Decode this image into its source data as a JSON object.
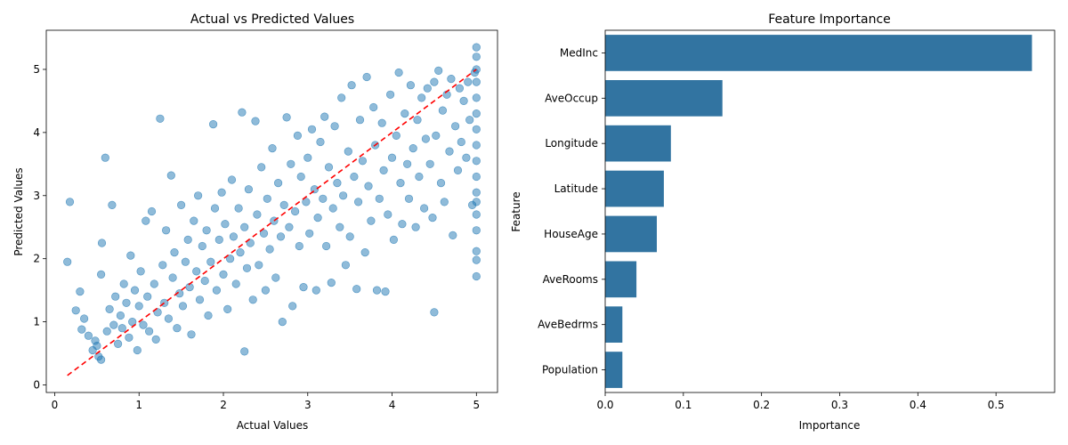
{
  "chart_data": [
    {
      "type": "scatter",
      "title": "Actual vs Predicted Values",
      "xlabel": "Actual Values",
      "ylabel": "Predicted Values",
      "xlim": [
        -0.1,
        5.25
      ],
      "ylim": [
        -0.12,
        5.62
      ],
      "xticks": [
        0,
        1,
        2,
        3,
        4,
        5
      ],
      "yticks": [
        0,
        1,
        2,
        3,
        4,
        5
      ],
      "grid": false,
      "point_color": "#1f77b4",
      "point_alpha": 0.5,
      "reference_line": {
        "x": [
          0.15,
          5.0
        ],
        "y": [
          0.15,
          5.0
        ],
        "color": "#ff0000",
        "style": "dashed"
      },
      "points": [
        [
          0.15,
          1.95
        ],
        [
          0.18,
          2.9
        ],
        [
          0.25,
          1.18
        ],
        [
          0.3,
          1.48
        ],
        [
          0.32,
          0.88
        ],
        [
          0.35,
          1.05
        ],
        [
          0.4,
          0.78
        ],
        [
          0.45,
          0.55
        ],
        [
          0.48,
          0.7
        ],
        [
          0.5,
          0.62
        ],
        [
          0.52,
          0.45
        ],
        [
          0.55,
          0.4
        ],
        [
          0.55,
          1.75
        ],
        [
          0.56,
          2.25
        ],
        [
          0.6,
          3.6
        ],
        [
          0.62,
          0.85
        ],
        [
          0.65,
          1.2
        ],
        [
          0.68,
          2.85
        ],
        [
          0.7,
          0.95
        ],
        [
          0.72,
          1.4
        ],
        [
          0.75,
          0.65
        ],
        [
          0.78,
          1.1
        ],
        [
          0.8,
          0.9
        ],
        [
          0.82,
          1.6
        ],
        [
          0.85,
          1.3
        ],
        [
          0.88,
          0.75
        ],
        [
          0.9,
          2.05
        ],
        [
          0.92,
          1.0
        ],
        [
          0.95,
          1.5
        ],
        [
          0.98,
          0.55
        ],
        [
          1.0,
          1.25
        ],
        [
          1.02,
          1.8
        ],
        [
          1.05,
          0.95
        ],
        [
          1.08,
          2.6
        ],
        [
          1.1,
          1.4
        ],
        [
          1.12,
          0.85
        ],
        [
          1.15,
          2.75
        ],
        [
          1.18,
          1.6
        ],
        [
          1.2,
          0.72
        ],
        [
          1.22,
          1.15
        ],
        [
          1.25,
          4.22
        ],
        [
          1.28,
          1.9
        ],
        [
          1.3,
          1.3
        ],
        [
          1.32,
          2.45
        ],
        [
          1.35,
          1.05
        ],
        [
          1.38,
          3.32
        ],
        [
          1.4,
          1.7
        ],
        [
          1.42,
          2.1
        ],
        [
          1.45,
          0.9
        ],
        [
          1.48,
          1.45
        ],
        [
          1.5,
          2.85
        ],
        [
          1.52,
          1.25
        ],
        [
          1.55,
          1.95
        ],
        [
          1.58,
          2.3
        ],
        [
          1.6,
          1.55
        ],
        [
          1.62,
          0.8
        ],
        [
          1.65,
          2.6
        ],
        [
          1.68,
          1.8
        ],
        [
          1.7,
          3.0
        ],
        [
          1.72,
          1.35
        ],
        [
          1.75,
          2.2
        ],
        [
          1.78,
          1.65
        ],
        [
          1.8,
          2.45
        ],
        [
          1.82,
          1.1
        ],
        [
          1.85,
          1.95
        ],
        [
          1.88,
          4.13
        ],
        [
          1.9,
          2.8
        ],
        [
          1.92,
          1.5
        ],
        [
          1.95,
          2.3
        ],
        [
          1.98,
          3.05
        ],
        [
          2.0,
          1.75
        ],
        [
          2.02,
          2.55
        ],
        [
          2.05,
          1.2
        ],
        [
          2.08,
          2.0
        ],
        [
          2.1,
          3.25
        ],
        [
          2.12,
          2.35
        ],
        [
          2.15,
          1.6
        ],
        [
          2.18,
          2.8
        ],
        [
          2.2,
          2.1
        ],
        [
          2.22,
          4.32
        ],
        [
          2.25,
          0.53
        ],
        [
          2.25,
          2.5
        ],
        [
          2.28,
          1.85
        ],
        [
          2.3,
          3.1
        ],
        [
          2.32,
          2.25
        ],
        [
          2.35,
          1.35
        ],
        [
          2.38,
          4.18
        ],
        [
          2.4,
          2.7
        ],
        [
          2.42,
          1.9
        ],
        [
          2.45,
          3.45
        ],
        [
          2.48,
          2.4
        ],
        [
          2.5,
          1.5
        ],
        [
          2.52,
          2.95
        ],
        [
          2.55,
          2.15
        ],
        [
          2.58,
          3.75
        ],
        [
          2.6,
          2.6
        ],
        [
          2.62,
          1.7
        ],
        [
          2.65,
          3.2
        ],
        [
          2.68,
          2.35
        ],
        [
          2.7,
          1.0
        ],
        [
          2.72,
          2.85
        ],
        [
          2.75,
          4.24
        ],
        [
          2.78,
          2.5
        ],
        [
          2.8,
          3.5
        ],
        [
          2.82,
          1.25
        ],
        [
          2.85,
          2.75
        ],
        [
          2.88,
          3.95
        ],
        [
          2.9,
          2.2
        ],
        [
          2.92,
          3.3
        ],
        [
          2.95,
          1.55
        ],
        [
          2.98,
          2.9
        ],
        [
          3.0,
          3.6
        ],
        [
          3.02,
          2.4
        ],
        [
          3.05,
          4.05
        ],
        [
          3.08,
          3.1
        ],
        [
          3.1,
          1.5
        ],
        [
          3.12,
          2.65
        ],
        [
          3.15,
          3.85
        ],
        [
          3.18,
          2.95
        ],
        [
          3.2,
          4.25
        ],
        [
          3.22,
          2.2
        ],
        [
          3.25,
          3.45
        ],
        [
          3.28,
          1.62
        ],
        [
          3.3,
          2.8
        ],
        [
          3.32,
          4.1
        ],
        [
          3.35,
          3.2
        ],
        [
          3.38,
          2.5
        ],
        [
          3.4,
          4.55
        ],
        [
          3.42,
          3.0
        ],
        [
          3.45,
          1.9
        ],
        [
          3.48,
          3.7
        ],
        [
          3.5,
          2.35
        ],
        [
          3.52,
          4.75
        ],
        [
          3.55,
          3.3
        ],
        [
          3.58,
          1.52
        ],
        [
          3.6,
          2.9
        ],
        [
          3.62,
          4.2
        ],
        [
          3.65,
          3.55
        ],
        [
          3.68,
          2.1
        ],
        [
          3.7,
          4.88
        ],
        [
          3.72,
          3.15
        ],
        [
          3.75,
          2.6
        ],
        [
          3.78,
          4.4
        ],
        [
          3.8,
          3.8
        ],
        [
          3.82,
          1.5
        ],
        [
          3.85,
          2.95
        ],
        [
          3.88,
          4.15
        ],
        [
          3.9,
          3.4
        ],
        [
          3.92,
          1.48
        ],
        [
          3.95,
          2.7
        ],
        [
          3.98,
          4.6
        ],
        [
          4.0,
          3.6
        ],
        [
          4.02,
          2.3
        ],
        [
          4.05,
          3.95
        ],
        [
          4.08,
          4.95
        ],
        [
          4.1,
          3.2
        ],
        [
          4.12,
          2.55
        ],
        [
          4.15,
          4.3
        ],
        [
          4.18,
          3.5
        ],
        [
          4.2,
          2.95
        ],
        [
          4.22,
          4.75
        ],
        [
          4.25,
          3.75
        ],
        [
          4.28,
          2.5
        ],
        [
          4.3,
          4.2
        ],
        [
          4.32,
          3.3
        ],
        [
          4.35,
          4.55
        ],
        [
          4.38,
          2.8
        ],
        [
          4.4,
          3.9
        ],
        [
          4.42,
          4.7
        ],
        [
          4.45,
          3.5
        ],
        [
          4.48,
          2.65
        ],
        [
          4.5,
          4.8
        ],
        [
          4.5,
          1.15
        ],
        [
          4.52,
          3.95
        ],
        [
          4.55,
          4.98
        ],
        [
          4.58,
          3.2
        ],
        [
          4.6,
          4.35
        ],
        [
          4.62,
          2.9
        ],
        [
          4.65,
          4.6
        ],
        [
          4.68,
          3.7
        ],
        [
          4.7,
          4.85
        ],
        [
          4.72,
          2.37
        ],
        [
          4.75,
          4.1
        ],
        [
          4.78,
          3.4
        ],
        [
          4.8,
          4.7
        ],
        [
          4.82,
          3.85
        ],
        [
          4.85,
          4.5
        ],
        [
          4.88,
          3.6
        ],
        [
          4.9,
          4.8
        ],
        [
          4.92,
          4.2
        ],
        [
          4.95,
          2.85
        ],
        [
          4.98,
          4.95
        ],
        [
          5.0,
          1.72
        ],
        [
          5.0,
          1.98
        ],
        [
          5.0,
          2.12
        ],
        [
          5.0,
          2.45
        ],
        [
          5.0,
          2.7
        ],
        [
          5.0,
          2.9
        ],
        [
          5.0,
          3.05
        ],
        [
          5.0,
          3.3
        ],
        [
          5.0,
          3.55
        ],
        [
          5.0,
          3.8
        ],
        [
          5.0,
          4.05
        ],
        [
          5.0,
          4.3
        ],
        [
          5.0,
          4.55
        ],
        [
          5.0,
          4.8
        ],
        [
          5.0,
          5.0
        ],
        [
          5.0,
          5.2
        ],
        [
          5.0,
          5.35
        ]
      ]
    },
    {
      "type": "bar",
      "orientation": "horizontal",
      "title": "Feature Importance",
      "xlabel": "Importance",
      "ylabel": "Feature",
      "xlim": [
        0,
        0.575
      ],
      "xticks": [
        0.0,
        0.1,
        0.2,
        0.3,
        0.4,
        0.5
      ],
      "grid": false,
      "bar_color": "#3274a1",
      "categories": [
        "MedInc",
        "AveOccup",
        "Longitude",
        "Latitude",
        "HouseAge",
        "AveRooms",
        "AveBedrms",
        "Population"
      ],
      "values": [
        0.546,
        0.15,
        0.084,
        0.075,
        0.066,
        0.04,
        0.022,
        0.022
      ]
    }
  ]
}
